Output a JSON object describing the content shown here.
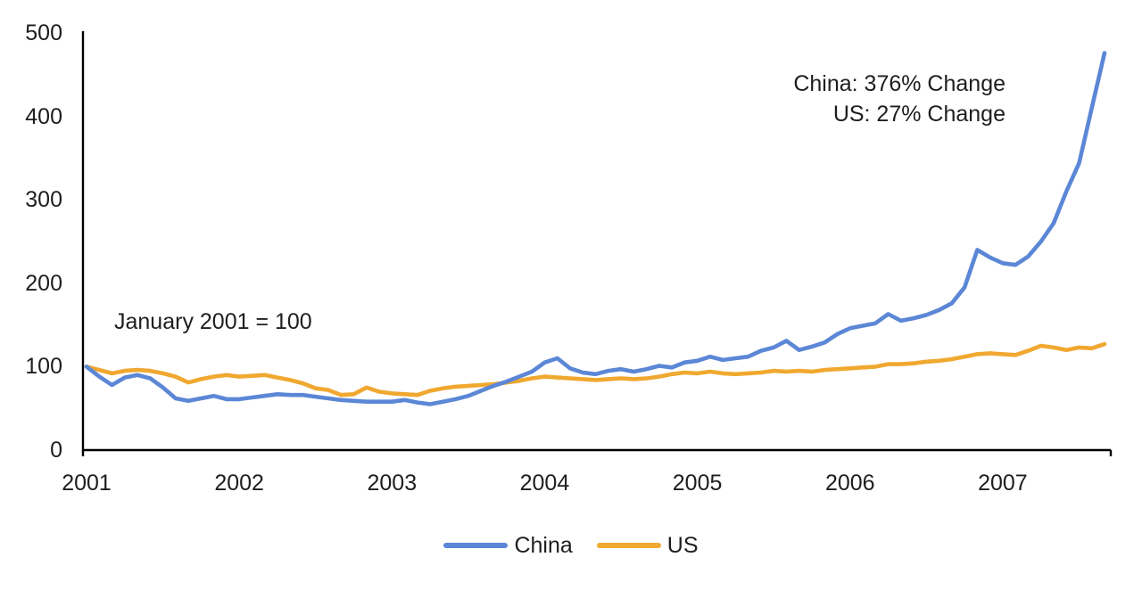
{
  "chart_data": {
    "type": "line",
    "title": "",
    "note": "January 2001 = 100",
    "annotations": [
      "China: 376% Change",
      "US: 27% Change"
    ],
    "x_start": "2001-01",
    "x_end": "2007-09",
    "x_frequency": "monthly",
    "x_tick_labels": [
      "2001",
      "2002",
      "2003",
      "2004",
      "2005",
      "2006",
      "2007"
    ],
    "y_ticks": [
      0,
      100,
      200,
      300,
      400,
      500
    ],
    "ylim": [
      0,
      500
    ],
    "grid": false,
    "legend_position": "bottom-center",
    "series": [
      {
        "name": "China",
        "color": "#5B87D6",
        "values": [
          100,
          88,
          78,
          87,
          90,
          86,
          75,
          62,
          59,
          62,
          65,
          61,
          61,
          63,
          65,
          67,
          66,
          66,
          64,
          62,
          60,
          59,
          58,
          58,
          58,
          60,
          57,
          55,
          58,
          61,
          65,
          71,
          77,
          82,
          88,
          94,
          105,
          110,
          98,
          93,
          91,
          95,
          97,
          94,
          97,
          101,
          99,
          105,
          107,
          112,
          108,
          110,
          112,
          119,
          123,
          131,
          120,
          124,
          129,
          139,
          146,
          149,
          152,
          163,
          155,
          158,
          162,
          168,
          176,
          195,
          240,
          231,
          224,
          222,
          232,
          250,
          272,
          310,
          344,
          410,
          476
        ]
      },
      {
        "name": "US",
        "color": "#F0A830",
        "values": [
          100,
          96,
          92,
          95,
          96,
          95,
          92,
          88,
          81,
          85,
          88,
          90,
          88,
          89,
          90,
          87,
          84,
          80,
          74,
          72,
          66,
          67,
          75,
          70,
          68,
          67,
          66,
          71,
          74,
          76,
          77,
          78,
          79,
          81,
          83,
          86,
          88,
          87,
          86,
          85,
          84,
          85,
          86,
          85,
          86,
          88,
          91,
          93,
          92,
          94,
          92,
          91,
          92,
          93,
          95,
          94,
          95,
          94,
          96,
          97,
          98,
          99,
          100,
          103,
          103,
          104,
          106,
          107,
          109,
          112,
          115,
          116,
          115,
          114,
          119,
          125,
          123,
          120,
          123,
          122,
          127
        ]
      }
    ]
  },
  "colors": {
    "text": "#1E1E1E",
    "axis": "#000000",
    "background": "#FFFFFF"
  }
}
